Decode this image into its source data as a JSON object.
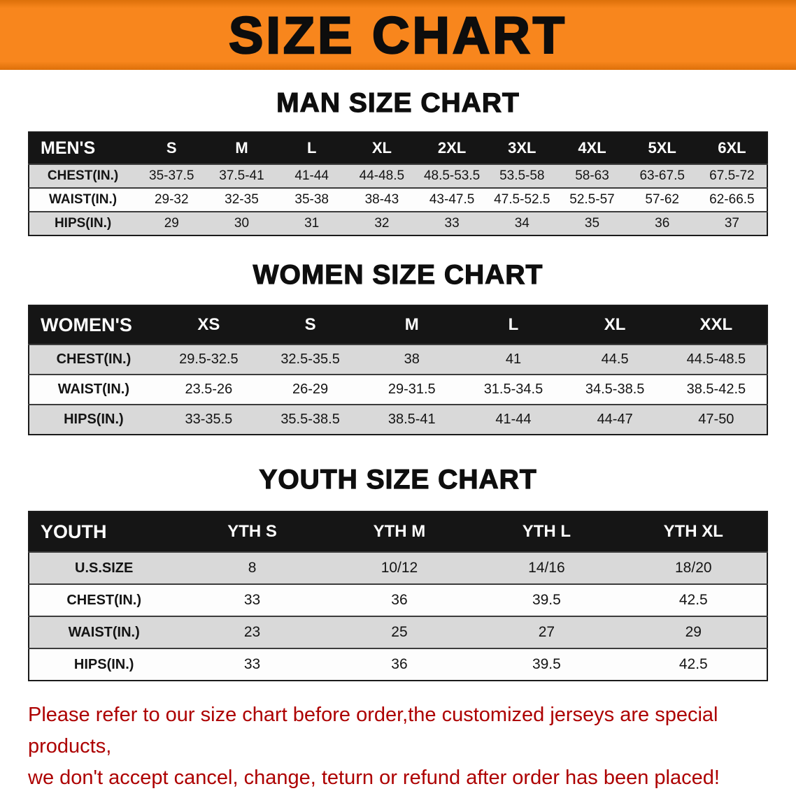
{
  "banner": {
    "title": "SIZE CHART"
  },
  "colors": {
    "banner_orange": "#F8861D",
    "table_header_black": "#151515",
    "row_gray": "#D9D9D9",
    "disclaimer_red": "#AD0000"
  },
  "sections": {
    "men": {
      "title": "MAN SIZE CHART",
      "header": [
        "MEN'S",
        "S",
        "M",
        "L",
        "XL",
        "2XL",
        "3XL",
        "4XL",
        "5XL",
        "6XL"
      ],
      "rows": [
        {
          "label": "CHEST(IN.)",
          "values": [
            "35-37.5",
            "37.5-41",
            "41-44",
            "44-48.5",
            "48.5-53.5",
            "53.5-58",
            "58-63",
            "63-67.5",
            "67.5-72"
          ]
        },
        {
          "label": "WAIST(IN.)",
          "values": [
            "29-32",
            "32-35",
            "35-38",
            "38-43",
            "43-47.5",
            "47.5-52.5",
            "52.5-57",
            "57-62",
            "62-66.5"
          ]
        },
        {
          "label": "HIPS(IN.)",
          "values": [
            "29",
            "30",
            "31",
            "32",
            "33",
            "34",
            "35",
            "36",
            "37"
          ]
        }
      ]
    },
    "women": {
      "title": "WOMEN SIZE CHART",
      "header": [
        "WOMEN'S",
        "XS",
        "S",
        "M",
        "L",
        "XL",
        "XXL"
      ],
      "rows": [
        {
          "label": "CHEST(IN.)",
          "values": [
            "29.5-32.5",
            "32.5-35.5",
            "38",
            "41",
            "44.5",
            "44.5-48.5"
          ]
        },
        {
          "label": "WAIST(IN.)",
          "values": [
            "23.5-26",
            "26-29",
            "29-31.5",
            "31.5-34.5",
            "34.5-38.5",
            "38.5-42.5"
          ]
        },
        {
          "label": "HIPS(IN.)",
          "values": [
            "33-35.5",
            "35.5-38.5",
            "38.5-41",
            "41-44",
            "44-47",
            "47-50"
          ]
        }
      ]
    },
    "youth": {
      "title": "YOUTH SIZE CHART",
      "header": [
        "YOUTH",
        "YTH S",
        "YTH M",
        "YTH L",
        "YTH XL"
      ],
      "rows": [
        {
          "label": "U.S.SIZE",
          "values": [
            "8",
            "10/12",
            "14/16",
            "18/20"
          ]
        },
        {
          "label": "CHEST(IN.)",
          "values": [
            "33",
            "36",
            "39.5",
            "42.5"
          ]
        },
        {
          "label": "WAIST(IN.)",
          "values": [
            "23",
            "25",
            "27",
            "29"
          ]
        },
        {
          "label": "HIPS(IN.)",
          "values": [
            "33",
            "36",
            "39.5",
            "42.5"
          ]
        }
      ]
    }
  },
  "disclaimer": {
    "line1": "Please refer to our size chart before order,the customized jerseys are special products,",
    "line2": "we don't accept cancel, change, teturn or refund after order has been placed!"
  }
}
